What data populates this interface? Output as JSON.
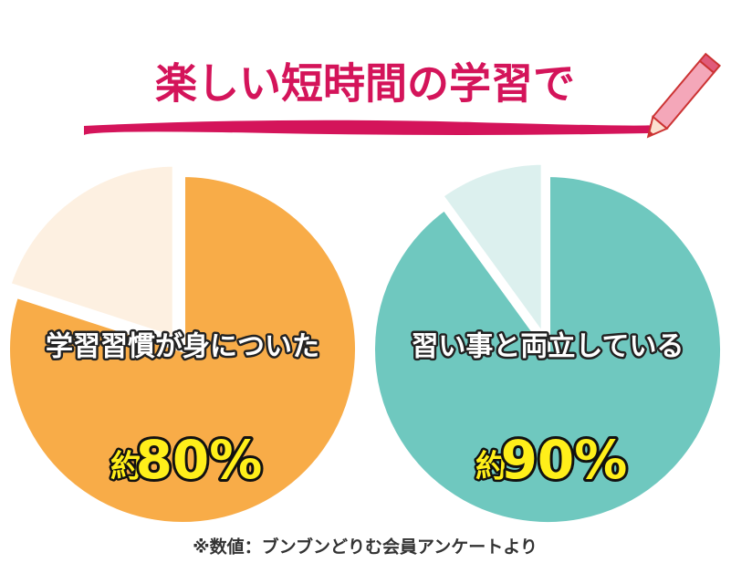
{
  "title": "楽しい短時間の学習で",
  "note": "※数値：ブンブンどりむ会員アンケートより",
  "chart_data": [
    {
      "type": "pie",
      "label": "学習習慣が身についた",
      "prefix": "約",
      "values": [
        80,
        20
      ],
      "value_labels": [
        "80%",
        null
      ],
      "colors": [
        "#f8ac48",
        "#fdf0e1"
      ]
    },
    {
      "type": "pie",
      "label": "習い事と両立している",
      "prefix": "約",
      "values": [
        90,
        10
      ],
      "value_labels": [
        "90%",
        null
      ],
      "colors": [
        "#6fc8bf",
        "#dcf0ee"
      ]
    }
  ]
}
